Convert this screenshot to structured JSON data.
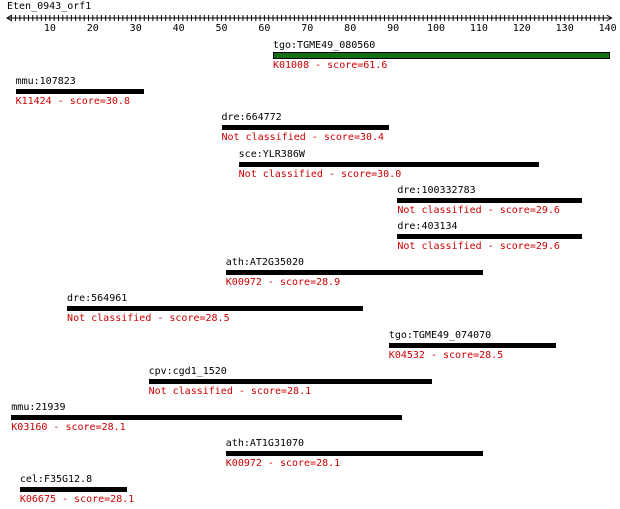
{
  "query": {
    "name": "Eten_0943_orf1",
    "length": 140,
    "ticks": [
      10,
      20,
      30,
      40,
      50,
      60,
      70,
      80,
      90,
      100,
      110,
      120,
      130,
      140
    ]
  },
  "colors": {
    "label": "#000000",
    "score": "#cc0000",
    "best_bar": "#146e14",
    "bar": "#000000"
  },
  "hits": [
    {
      "gene": "tgo:TGME49_080560",
      "ko": "K01008",
      "score_text": "K01008 - score=61.6",
      "start": 62,
      "end": 140,
      "best": true
    },
    {
      "gene": "mmu:107823",
      "ko": "K11424",
      "score_text": "K11424 - score=30.8",
      "start": 2,
      "end": 32,
      "best": false
    },
    {
      "gene": "dre:664772",
      "ko": "Not classified",
      "score_text": "Not classified - score=30.4",
      "start": 50,
      "end": 89,
      "best": false
    },
    {
      "gene": "sce:YLR386W",
      "ko": "Not classified",
      "score_text": "Not classified - score=30.0",
      "start": 54,
      "end": 124,
      "best": false
    },
    {
      "gene": "dre:100332783",
      "ko": "Not classified",
      "score_text": "Not classified - score=29.6",
      "start": 91,
      "end": 134,
      "best": false
    },
    {
      "gene": "dre:403134",
      "ko": "Not classified",
      "score_text": "Not classified - score=29.6",
      "start": 91,
      "end": 134,
      "best": false
    },
    {
      "gene": "ath:AT2G35020",
      "ko": "K00972",
      "score_text": "K00972 - score=28.9",
      "start": 51,
      "end": 111,
      "best": false
    },
    {
      "gene": "dre:564961",
      "ko": "Not classified",
      "score_text": "Not classified - score=28.5",
      "start": 14,
      "end": 83,
      "best": false
    },
    {
      "gene": "tgo:TGME49_074070",
      "ko": "K04532",
      "score_text": "K04532 - score=28.5",
      "start": 89,
      "end": 128,
      "best": false
    },
    {
      "gene": "cpv:cgd1_1520",
      "ko": "Not classified",
      "score_text": "Not classified - score=28.1",
      "start": 33,
      "end": 99,
      "best": false
    },
    {
      "gene": "mmu:21939",
      "ko": "K03160",
      "score_text": "K03160 - score=28.1",
      "start": 1,
      "end": 92,
      "best": false
    },
    {
      "gene": "ath:AT1G31070",
      "ko": "K00972",
      "score_text": "K00972 - score=28.1",
      "start": 51,
      "end": 111,
      "best": false
    },
    {
      "gene": "cel:F35G12.8",
      "ko": "K06675",
      "score_text": "K06675 - score=28.1",
      "start": 3,
      "end": 28,
      "best": false
    }
  ]
}
